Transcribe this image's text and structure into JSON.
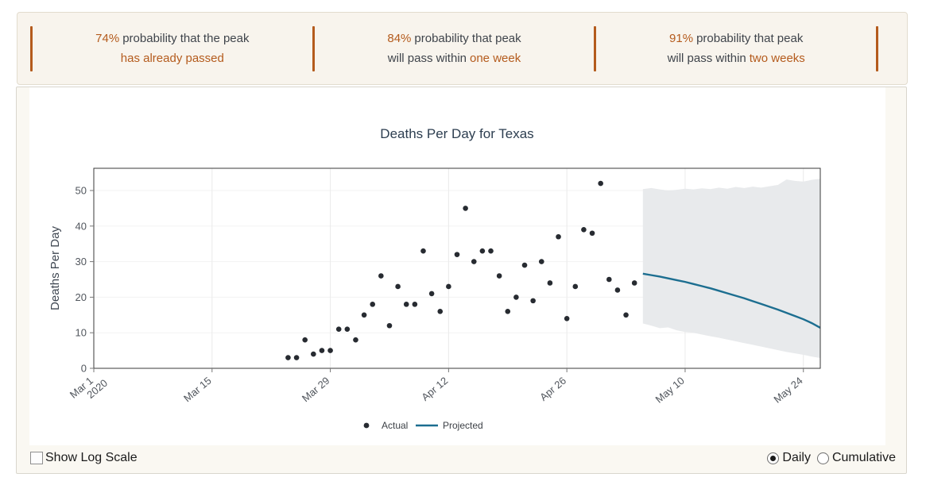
{
  "banner": {
    "stats": [
      {
        "pct": "74%",
        "line1": "probability that the peak",
        "line2_plain": "",
        "line2_hl": "has already passed"
      },
      {
        "pct": "84%",
        "line1": "probability that peak",
        "line2_plain": "will pass within",
        "line2_hl": "one week"
      },
      {
        "pct": "91%",
        "line1": "probability that peak",
        "line2_plain": "will pass within",
        "line2_hl": "two weeks"
      }
    ]
  },
  "controls": {
    "log_scale_label": "Show Log Scale",
    "daily_label": "Daily",
    "cumulative_label": "Cumulative",
    "selected_mode": "Daily"
  },
  "colors": {
    "accent_orange": "#b45b1d",
    "banner_bg": "#f8f4ed",
    "title_navy": "#2d3e50",
    "dot": "#272b31",
    "line": "#1c6e90",
    "band": "#e8eaec"
  },
  "chart_data": {
    "type": "scatter",
    "title": "Deaths Per Day for Texas",
    "xlabel": "",
    "ylabel": "Deaths Per Day",
    "ylim": [
      0,
      56.25
    ],
    "yticks": [
      0,
      10,
      20,
      30,
      40,
      50
    ],
    "x_max_day": 86,
    "xticks": [
      {
        "day": 0,
        "label": "Mar 1",
        "label2": "2020"
      },
      {
        "day": 14,
        "label": "Mar 15"
      },
      {
        "day": 28,
        "label": "Mar 29"
      },
      {
        "day": 42,
        "label": "Apr 12"
      },
      {
        "day": 56,
        "label": "Apr 26"
      },
      {
        "day": 70,
        "label": "May 10"
      },
      {
        "day": 84,
        "label": "May 24"
      }
    ],
    "grid": true,
    "legend_position": "bottom-center",
    "actual": {
      "name": "Actual",
      "dates": [
        "Mar 24",
        "Mar 25",
        "Mar 26",
        "Mar 27",
        "Mar 28",
        "Mar 29",
        "Mar 30",
        "Mar 31",
        "Apr 1",
        "Apr 2",
        "Apr 3",
        "Apr 4",
        "Apr 5",
        "Apr 6",
        "Apr 7",
        "Apr 8",
        "Apr 9",
        "Apr 10",
        "Apr 11",
        "Apr 12",
        "Apr 13",
        "Apr 14",
        "Apr 15",
        "Apr 16",
        "Apr 17",
        "Apr 18",
        "Apr 19",
        "Apr 20",
        "Apr 21",
        "Apr 22",
        "Apr 23",
        "Apr 24",
        "Apr 25",
        "Apr 26",
        "Apr 27",
        "Apr 28",
        "Apr 29",
        "Apr 30",
        "May 1",
        "May 2",
        "May 3",
        "May 4"
      ],
      "days": [
        23,
        24,
        25,
        26,
        27,
        28,
        29,
        30,
        31,
        32,
        33,
        34,
        35,
        36,
        37,
        38,
        39,
        40,
        41,
        42,
        43,
        44,
        45,
        46,
        47,
        48,
        49,
        50,
        51,
        52,
        53,
        54,
        55,
        56,
        57,
        58,
        59,
        60,
        61,
        62,
        63,
        64
      ],
      "values": [
        3,
        3,
        8,
        4,
        5,
        5,
        11,
        11,
        8,
        15,
        18,
        26,
        12,
        23,
        18,
        18,
        33,
        21,
        16,
        23,
        32,
        45,
        30,
        33,
        33,
        26,
        16,
        20,
        29,
        19,
        30,
        24,
        37,
        14,
        23,
        39,
        38,
        52,
        25,
        22,
        15,
        24
      ]
    },
    "projected": {
      "name": "Projected",
      "dates": [
        "May 5",
        "May 6",
        "May 7",
        "May 8",
        "May 9",
        "May 10",
        "May 11",
        "May 12",
        "May 13",
        "May 14",
        "May 15",
        "May 16",
        "May 17",
        "May 18",
        "May 19",
        "May 20",
        "May 21",
        "May 22",
        "May 23",
        "May 24",
        "May 25",
        "May 26"
      ],
      "days": [
        65,
        66,
        67,
        68,
        69,
        70,
        71,
        72,
        73,
        74,
        75,
        76,
        77,
        78,
        79,
        80,
        81,
        82,
        83,
        84,
        85,
        86
      ],
      "values": [
        26.6,
        26.2,
        25.8,
        25.3,
        24.8,
        24.3,
        23.7,
        23.1,
        22.5,
        21.8,
        21.1,
        20.4,
        19.7,
        18.9,
        18.1,
        17.3,
        16.5,
        15.6,
        14.7,
        13.8,
        12.7,
        11.4
      ]
    },
    "band": {
      "days": [
        65,
        66,
        67,
        68,
        69,
        70,
        71,
        72,
        73,
        74,
        75,
        76,
        77,
        78,
        79,
        80,
        81,
        82,
        83,
        84,
        85,
        86
      ],
      "upper": [
        50.4,
        50.7,
        50.3,
        50.0,
        50.2,
        50.5,
        50.3,
        50.6,
        50.4,
        50.8,
        50.5,
        51.0,
        50.7,
        51.1,
        50.8,
        51.2,
        51.6,
        53.1,
        52.7,
        52.5,
        53.0,
        53.3
      ],
      "lower": [
        12.6,
        12.0,
        11.3,
        11.5,
        10.7,
        10.2,
        10.0,
        9.5,
        9.0,
        8.6,
        8.1,
        7.6,
        7.1,
        6.6,
        6.1,
        5.6,
        5.1,
        4.6,
        4.2,
        3.8,
        3.3,
        2.9
      ]
    }
  }
}
